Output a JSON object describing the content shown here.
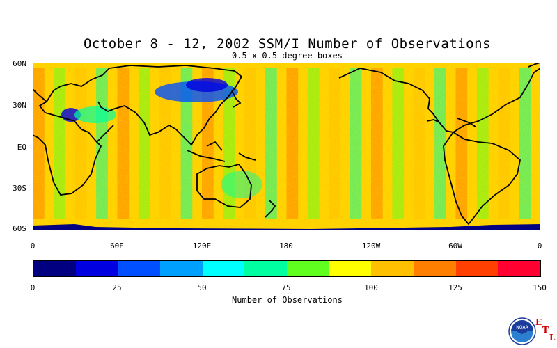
{
  "header": {
    "title": "October 8 - 12, 2002 SSM/I Number of Observations",
    "subtitle": "0.5 x 0.5 degree boxes"
  },
  "map": {
    "lat_labels": [
      "60N",
      "30N",
      "EQ",
      "30S",
      "60S"
    ],
    "lon_labels": [
      "0",
      "60E",
      "120E",
      "180",
      "120W",
      "60W",
      "0"
    ]
  },
  "colorbar": {
    "title": "Number of Observations",
    "tick_labels": [
      "0",
      "25",
      "50",
      "75",
      "100",
      "125",
      "150"
    ],
    "colors": [
      "#000080",
      "#0000e0",
      "#0050ff",
      "#00a0ff",
      "#00ffff",
      "#00ffa0",
      "#60ff20",
      "#ffff00",
      "#ffc000",
      "#ff8000",
      "#ff4000",
      "#ff0030"
    ]
  },
  "logo": {
    "text": "NOAA",
    "letters": [
      "E",
      "T",
      "L"
    ]
  }
}
